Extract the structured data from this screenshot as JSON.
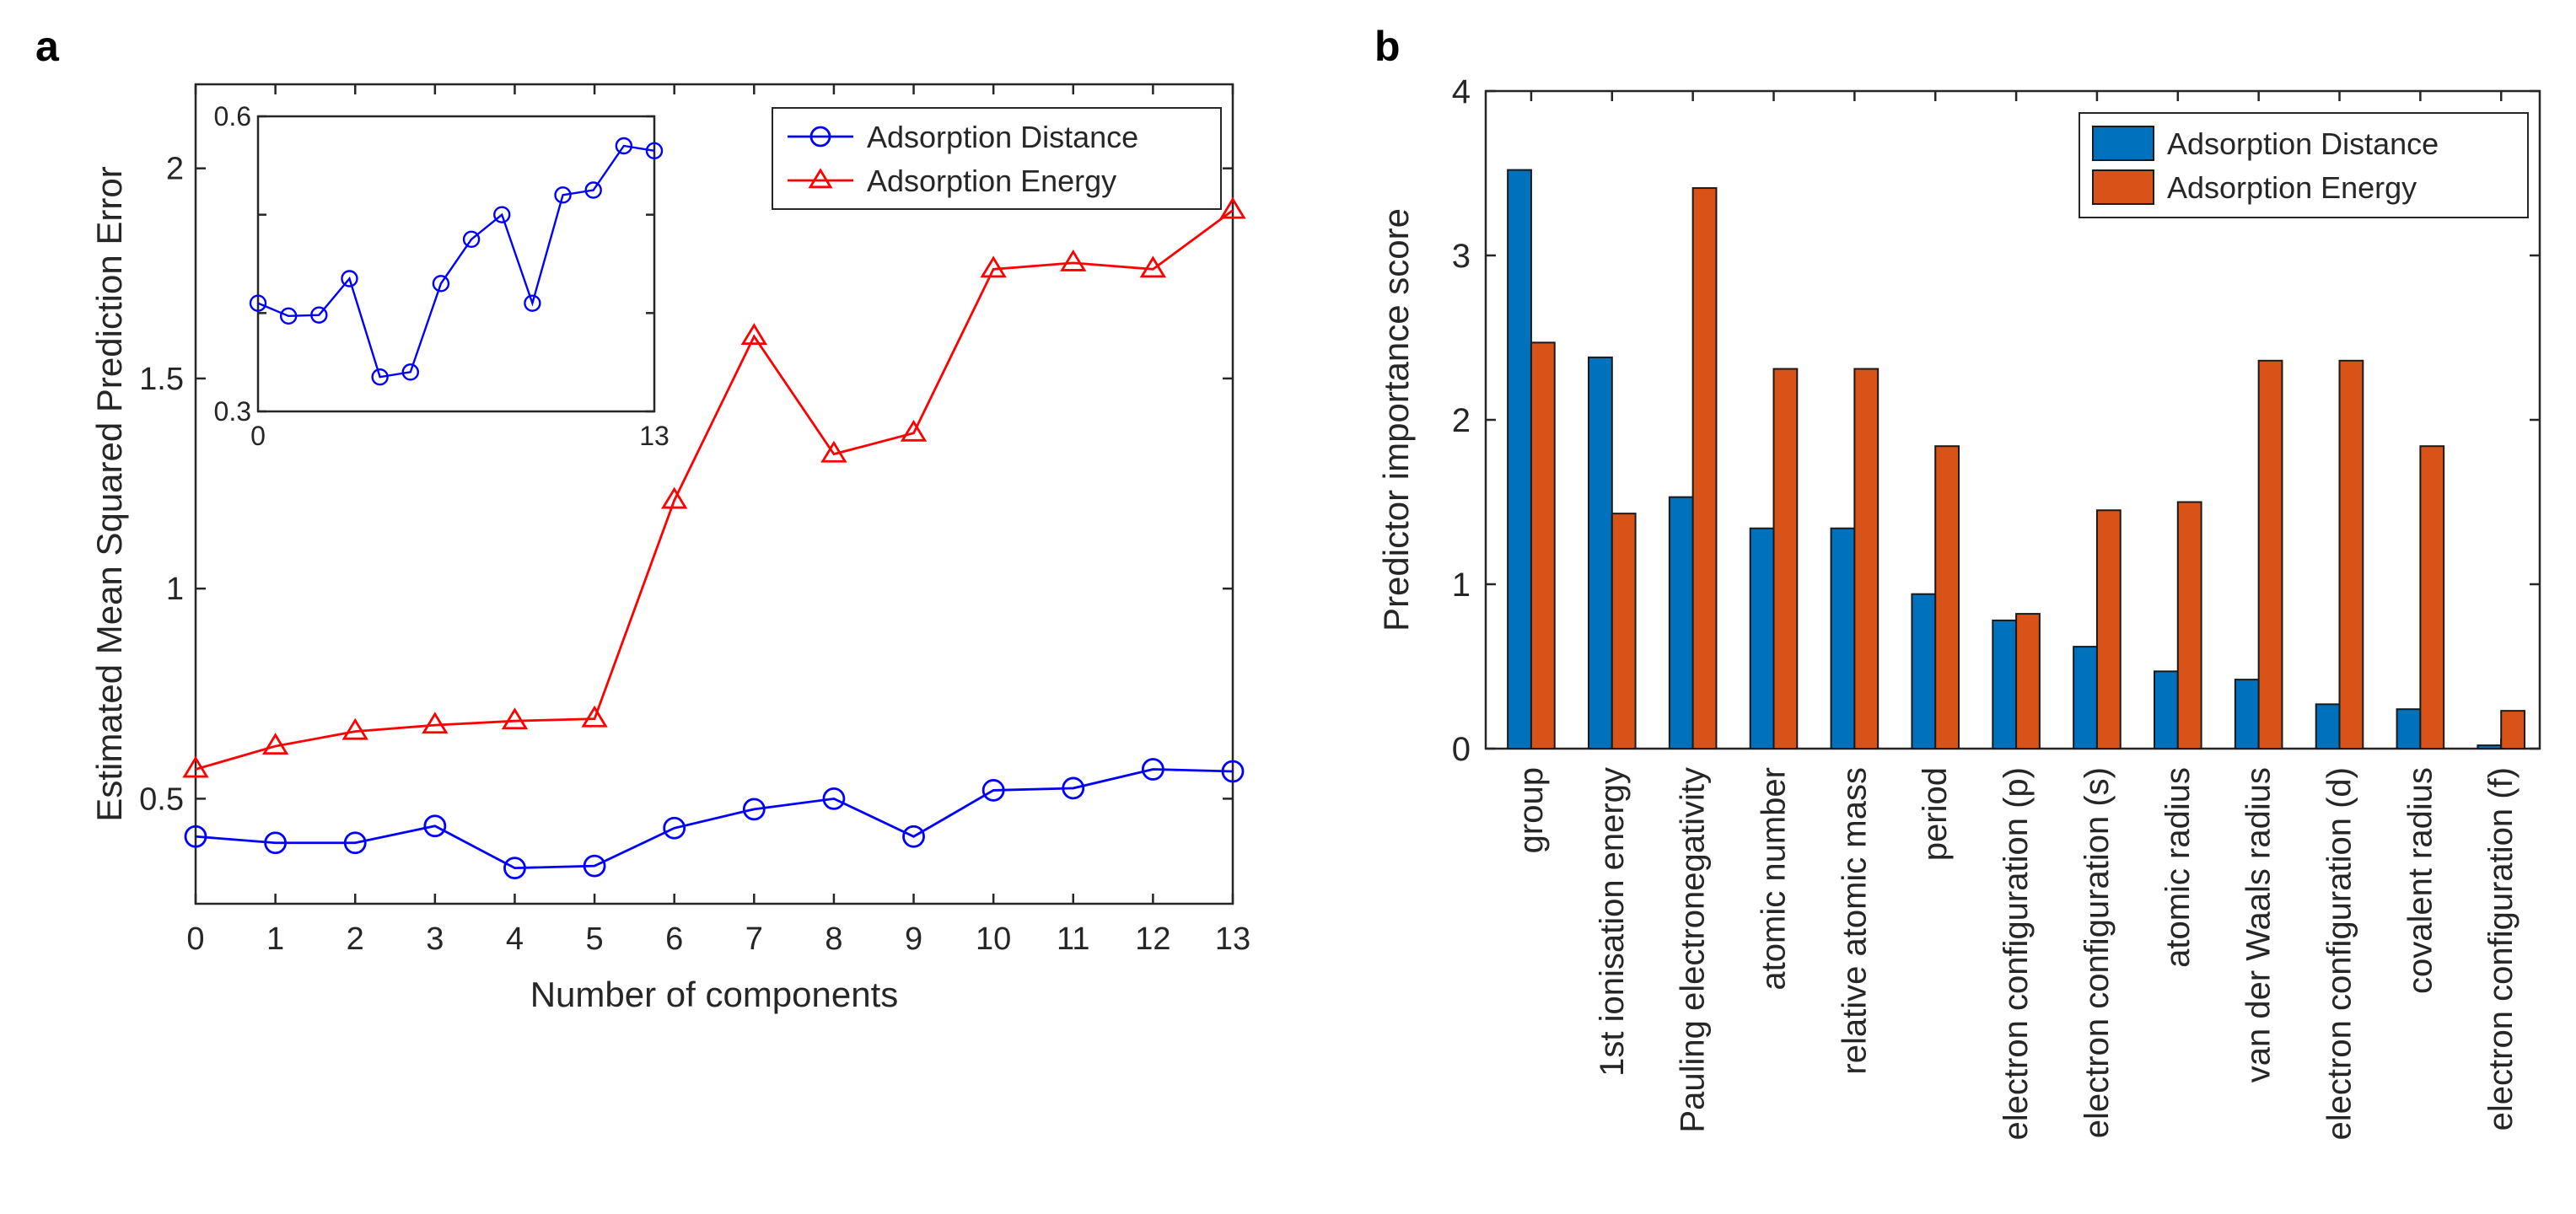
{
  "figure": {
    "panel_a_label": "a",
    "panel_b_label": "b"
  },
  "chart_data": [
    {
      "id": "a",
      "type": "line",
      "title": "",
      "xlabel": "Number of components",
      "ylabel": "Estimated Mean Squared Prediction Error",
      "xlim": [
        0,
        13
      ],
      "ylim": [
        0.25,
        2.2
      ],
      "xticks": [
        0,
        1,
        2,
        3,
        4,
        5,
        6,
        7,
        8,
        9,
        10,
        11,
        12,
        13
      ],
      "yticks": [
        0.5,
        1,
        1.5,
        2
      ],
      "ytick_labels": [
        "0.5",
        "1",
        "1.5",
        "2"
      ],
      "legend_position": "top-right",
      "x": [
        0,
        1,
        2,
        3,
        4,
        5,
        6,
        7,
        8,
        9,
        10,
        11,
        12,
        13
      ],
      "series": [
        {
          "name": "Adsorption Distance",
          "color": "#0000ff",
          "marker": "circle",
          "values": [
            0.41,
            0.395,
            0.395,
            0.435,
            0.335,
            0.34,
            0.43,
            0.475,
            0.5,
            0.41,
            0.52,
            0.525,
            0.57,
            0.565
          ]
        },
        {
          "name": "Adsorption Energy",
          "color": "#ff0000",
          "marker": "triangle",
          "values": [
            0.57,
            0.625,
            0.66,
            0.675,
            0.685,
            0.69,
            1.21,
            1.6,
            1.32,
            1.37,
            1.76,
            1.775,
            1.76,
            1.9
          ]
        }
      ],
      "inset": {
        "series": "Adsorption Distance",
        "color": "#0000ff",
        "xlim": [
          0,
          13
        ],
        "ylim": [
          0.3,
          0.6
        ],
        "xticks": [
          0,
          13
        ],
        "xtick_labels": [
          "0",
          "13"
        ],
        "yticks": [
          0.3,
          0.4,
          0.5,
          0.6
        ],
        "ytick_labels": [
          "0.3",
          "",
          "",
          "0.6"
        ],
        "x": [
          0,
          1,
          2,
          3,
          4,
          5,
          6,
          7,
          8,
          9,
          10,
          11,
          12,
          13
        ],
        "values": [
          0.41,
          0.397,
          0.398,
          0.435,
          0.335,
          0.34,
          0.43,
          0.475,
          0.5,
          0.41,
          0.52,
          0.525,
          0.57,
          0.565
        ]
      }
    },
    {
      "id": "b",
      "type": "bar",
      "title": "",
      "xlabel": "",
      "ylabel": "Predictor importance score",
      "ylim": [
        0,
        4
      ],
      "yticks": [
        0,
        1,
        2,
        3,
        4
      ],
      "legend_position": "top-right",
      "categories": [
        "group",
        "1st ionisation energy",
        "Pauling electronegativity",
        "atomic number",
        "relative atomic mass",
        "period",
        "electron configuration (p)",
        "electron configuration (s)",
        "atomic radius",
        "van der Waals radius",
        "electron configuration (d)",
        "covalent radius",
        "electron configuration (f)"
      ],
      "series": [
        {
          "name": "Adsorption Distance",
          "color": "#0072bd",
          "values": [
            3.52,
            2.38,
            1.53,
            1.34,
            1.34,
            0.94,
            0.78,
            0.62,
            0.47,
            0.42,
            0.27,
            0.24,
            0.02
          ]
        },
        {
          "name": "Adsorption Energy",
          "color": "#d95319",
          "values": [
            2.47,
            1.43,
            3.41,
            2.31,
            2.31,
            1.84,
            0.82,
            1.45,
            1.5,
            2.36,
            2.36,
            1.84,
            0.23
          ]
        }
      ]
    }
  ]
}
